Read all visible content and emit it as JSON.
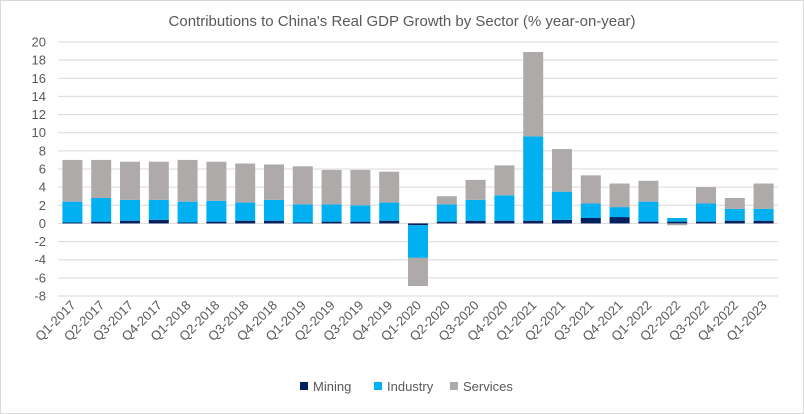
{
  "chart_data": {
    "type": "bar",
    "stacked": true,
    "title": "Contributions to China's Real GDP Growth by  Sector (% year-on-year)",
    "xlabel": "",
    "ylabel": "",
    "ylim": [
      -8,
      20
    ],
    "yticks": [
      -8,
      -6,
      -4,
      -2,
      0,
      2,
      4,
      6,
      8,
      10,
      12,
      14,
      16,
      18,
      20
    ],
    "grid": true,
    "legend_position": "bottom",
    "categories": [
      "Q1-2017",
      "Q2-2017",
      "Q3-2017",
      "Q4-2017",
      "Q1-2018",
      "Q2-2018",
      "Q3-2018",
      "Q4-2018",
      "Q1-2019",
      "Q2-2019",
      "Q3-2019",
      "Q4-2019",
      "Q1-2020",
      "Q2-2020",
      "Q3-2020",
      "Q4-2020",
      "Q1-2021",
      "Q2-2021",
      "Q3-2021",
      "Q4-2021",
      "Q1-2022",
      "Q2-2022",
      "Q3-2022",
      "Q4-2022",
      "Q1-2023"
    ],
    "series": [
      {
        "name": "Mining",
        "color": "#002060",
        "values": [
          0.1,
          0.2,
          0.3,
          0.4,
          0.1,
          0.2,
          0.3,
          0.3,
          0.1,
          0.2,
          0.2,
          0.3,
          -0.2,
          0.2,
          0.3,
          0.3,
          0.3,
          0.4,
          0.6,
          0.7,
          0.2,
          0.2,
          0.2,
          0.3,
          0.3
        ]
      },
      {
        "name": "Industry",
        "color": "#00B0F0",
        "values": [
          2.3,
          2.6,
          2.3,
          2.2,
          2.3,
          2.3,
          2.0,
          2.3,
          2.0,
          1.9,
          1.8,
          2.0,
          -3.6,
          1.9,
          2.3,
          2.8,
          9.3,
          3.1,
          1.6,
          1.1,
          2.2,
          0.4,
          2.0,
          1.3,
          1.3
        ]
      },
      {
        "name": "Services",
        "color": "#AEAAAA",
        "values": [
          4.6,
          4.2,
          4.2,
          4.2,
          4.6,
          4.3,
          4.3,
          3.9,
          4.2,
          3.8,
          3.9,
          3.4,
          -3.1,
          0.9,
          2.2,
          3.3,
          9.3,
          4.7,
          3.1,
          2.6,
          2.3,
          -0.2,
          1.8,
          1.2,
          2.8
        ]
      }
    ]
  }
}
